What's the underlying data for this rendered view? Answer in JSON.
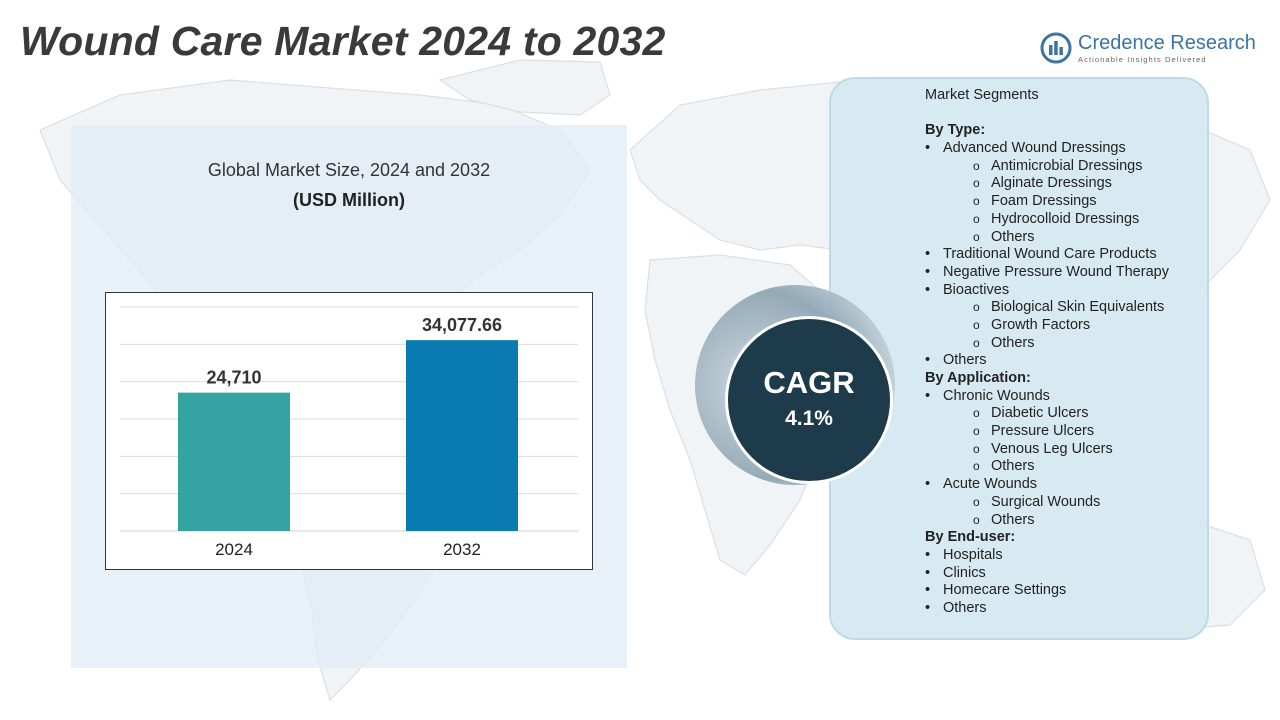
{
  "title": "Wound Care Market 2024 to 2032",
  "brand": {
    "name": "Credence Research",
    "tagline": "Actionable Insights Delivered",
    "color": "#3b73a5"
  },
  "colors": {
    "bar_2024": "#35a3a2",
    "bar_2032": "#0a7bb0",
    "cagr_circle": "#1d3b4a",
    "segments_panel": "#d5e8f0"
  },
  "chart_data": {
    "type": "bar",
    "title": "Global Market Size, 2024 and 2032",
    "subtitle": "(USD Million)",
    "categories": [
      "2024",
      "2032"
    ],
    "values": [
      24710,
      34077.66
    ],
    "value_labels": [
      "24,710",
      "34,077.66"
    ],
    "ylim": [
      0,
      40000
    ],
    "grid": true,
    "legend": "none"
  },
  "cagr": {
    "label": "CAGR",
    "value": "4.1%"
  },
  "segments": {
    "heading": "Market Segments",
    "groups": [
      {
        "label": "By Type:",
        "items": [
          {
            "label": "Advanced Wound Dressings",
            "sub": [
              "Antimicrobial Dressings",
              "Alginate Dressings",
              "Foam Dressings",
              "Hydrocolloid Dressings",
              "Others"
            ]
          },
          {
            "label": "Traditional Wound Care Products",
            "sub": []
          },
          {
            "label": "Negative Pressure Wound Therapy",
            "sub": []
          },
          {
            "label": "Bioactives",
            "sub": [
              "Biological Skin Equivalents",
              "Growth Factors",
              "Others"
            ]
          },
          {
            "label": "Others",
            "sub": []
          }
        ]
      },
      {
        "label": "By Application:",
        "items": [
          {
            "label": "Chronic Wounds",
            "sub": [
              "Diabetic Ulcers",
              "Pressure Ulcers",
              "Venous Leg Ulcers",
              "Others"
            ]
          },
          {
            "label": "Acute Wounds",
            "sub": [
              "Surgical Wounds",
              "Others"
            ]
          }
        ]
      },
      {
        "label": "By End-user:",
        "items": [
          {
            "label": "Hospitals",
            "sub": []
          },
          {
            "label": "Clinics",
            "sub": []
          },
          {
            "label": "Homecare Settings",
            "sub": []
          },
          {
            "label": "Others",
            "sub": []
          }
        ]
      }
    ]
  }
}
